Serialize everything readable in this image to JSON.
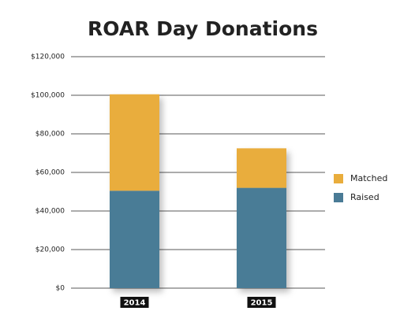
{
  "chart_data": {
    "type": "stacked-bar",
    "title": "ROAR Day Donations",
    "categories": [
      "2014",
      "2015"
    ],
    "series": [
      {
        "name": "Raised",
        "color": "#4a7b96",
        "values": [
          50500,
          52000
        ]
      },
      {
        "name": "Matched",
        "color": "#e9ad3c",
        "values": [
          50000,
          20500
        ]
      }
    ],
    "ylim": [
      0,
      120000
    ],
    "yticks": [
      {
        "value": 0,
        "label": "$0"
      },
      {
        "value": 20000,
        "label": "$20,000"
      },
      {
        "value": 40000,
        "label": "$40,000"
      },
      {
        "value": 60000,
        "label": "$60,000"
      },
      {
        "value": 80000,
        "label": "$80,000"
      },
      {
        "value": 100000,
        "label": "$100,000"
      },
      {
        "value": 120000,
        "label": "$120,000"
      }
    ],
    "grid": true,
    "legend": "right"
  }
}
